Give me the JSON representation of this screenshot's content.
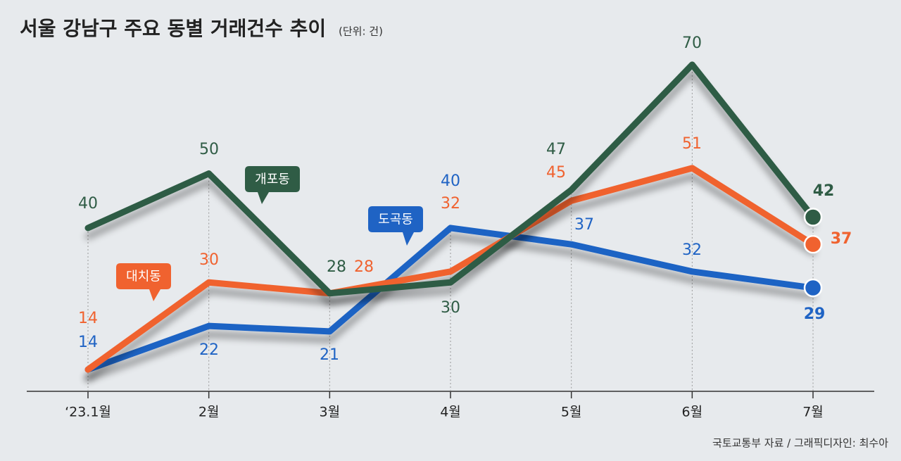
{
  "chart_data": {
    "type": "line",
    "title": "서울 강남구 주요 동별 거래건수 추이",
    "subtitle": "(단위: 건)",
    "source": "국토교통부 자료 / 그래픽디자인: 최수아",
    "categories": [
      "‘23.1월",
      "2월",
      "3월",
      "4월",
      "5월",
      "6월",
      "7월"
    ],
    "ylim": [
      10,
      78
    ],
    "series": [
      {
        "name": "개포동",
        "color": "#2f5c45",
        "values": [
          40,
          50,
          28,
          30,
          47,
          70,
          42
        ]
      },
      {
        "name": "대치동",
        "color": "#f0622f",
        "values": [
          14,
          30,
          28,
          32,
          45,
          51,
          37
        ]
      },
      {
        "name": "도곡동",
        "color": "#1f63c4",
        "values": [
          14,
          22,
          21,
          40,
          37,
          32,
          29
        ]
      }
    ]
  }
}
